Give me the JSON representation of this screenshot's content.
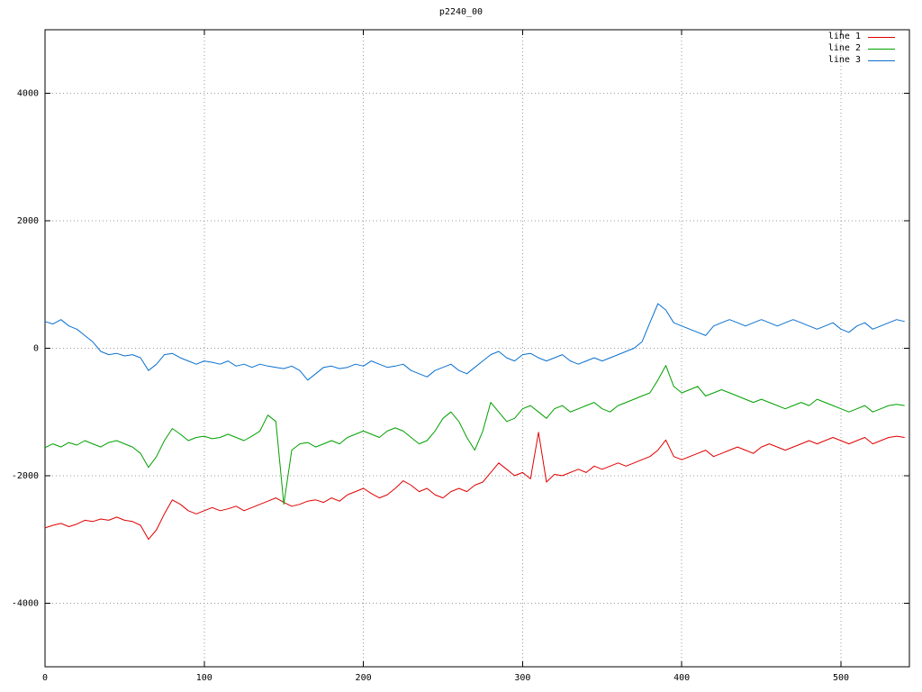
{
  "chart_data": {
    "type": "line",
    "title": "p2240_00",
    "xlabel": "",
    "ylabel": "",
    "xlim": [
      0,
      543
    ],
    "ylim": [
      -5000,
      5000
    ],
    "xticks": [
      0,
      100,
      200,
      300,
      400,
      500
    ],
    "yticks": [
      -4000,
      -2000,
      0,
      2000,
      4000
    ],
    "grid": true,
    "legend_position": "top-right",
    "x_start": 0,
    "x_step": 5,
    "series": [
      {
        "name": "line 1",
        "color": "#e00000",
        "values": [
          -2820,
          -2780,
          -2750,
          -2800,
          -2760,
          -2700,
          -2720,
          -2680,
          -2700,
          -2650,
          -2700,
          -2720,
          -2780,
          -3000,
          -2850,
          -2600,
          -2380,
          -2450,
          -2550,
          -2600,
          -2550,
          -2500,
          -2550,
          -2520,
          -2480,
          -2550,
          -2500,
          -2450,
          -2400,
          -2350,
          -2420,
          -2480,
          -2450,
          -2400,
          -2380,
          -2420,
          -2350,
          -2400,
          -2300,
          -2250,
          -2200,
          -2280,
          -2350,
          -2300,
          -2200,
          -2080,
          -2150,
          -2250,
          -2200,
          -2300,
          -2350,
          -2250,
          -2200,
          -2250,
          -2150,
          -2100,
          -1950,
          -1800,
          -1900,
          -2000,
          -1950,
          -2050,
          -1320,
          -2100,
          -1980,
          -2000,
          -1950,
          -1900,
          -1950,
          -1850,
          -1900,
          -1850,
          -1800,
          -1850,
          -1800,
          -1750,
          -1700,
          -1600,
          -1440,
          -1700,
          -1750,
          -1700,
          -1650,
          -1600,
          -1700,
          -1650,
          -1600,
          -1550,
          -1600,
          -1650,
          -1550,
          -1500,
          -1550,
          -1600,
          -1550,
          -1500,
          -1450,
          -1500,
          -1450,
          -1400,
          -1450,
          -1500,
          -1450,
          -1400,
          -1500,
          -1450,
          -1400,
          -1380,
          -1400
        ]
      },
      {
        "name": "line 2",
        "color": "#00a000",
        "values": [
          -1560,
          -1500,
          -1550,
          -1480,
          -1520,
          -1450,
          -1500,
          -1550,
          -1480,
          -1450,
          -1500,
          -1550,
          -1650,
          -1870,
          -1700,
          -1450,
          -1260,
          -1350,
          -1450,
          -1400,
          -1380,
          -1420,
          -1400,
          -1350,
          -1400,
          -1450,
          -1380,
          -1300,
          -1050,
          -1150,
          -2450,
          -1600,
          -1500,
          -1480,
          -1550,
          -1500,
          -1450,
          -1500,
          -1400,
          -1350,
          -1300,
          -1350,
          -1400,
          -1300,
          -1250,
          -1300,
          -1400,
          -1500,
          -1450,
          -1300,
          -1100,
          -1000,
          -1150,
          -1400,
          -1600,
          -1300,
          -850,
          -1000,
          -1150,
          -1100,
          -950,
          -900,
          -1000,
          -1100,
          -950,
          -900,
          -1000,
          -950,
          -900,
          -850,
          -950,
          -1000,
          -900,
          -850,
          -800,
          -750,
          -700,
          -500,
          -270,
          -600,
          -700,
          -650,
          -600,
          -750,
          -700,
          -650,
          -700,
          -750,
          -800,
          -850,
          -800,
          -850,
          -900,
          -950,
          -900,
          -850,
          -900,
          -800,
          -850,
          -900,
          -950,
          -1000,
          -950,
          -900,
          -1000,
          -950,
          -900,
          -880,
          -900
        ]
      },
      {
        "name": "line 3",
        "color": "#0a70d0",
        "values": [
          420,
          380,
          450,
          350,
          300,
          200,
          100,
          -50,
          -100,
          -80,
          -120,
          -100,
          -150,
          -350,
          -250,
          -100,
          -80,
          -150,
          -200,
          -250,
          -200,
          -220,
          -250,
          -200,
          -280,
          -250,
          -300,
          -250,
          -280,
          -300,
          -320,
          -280,
          -350,
          -500,
          -400,
          -300,
          -280,
          -320,
          -300,
          -250,
          -280,
          -200,
          -250,
          -300,
          -280,
          -250,
          -350,
          -400,
          -450,
          -350,
          -300,
          -250,
          -350,
          -400,
          -300,
          -200,
          -100,
          -50,
          -150,
          -200,
          -100,
          -80,
          -150,
          -200,
          -150,
          -100,
          -200,
          -250,
          -200,
          -150,
          -200,
          -150,
          -100,
          -50,
          0,
          100,
          400,
          700,
          600,
          400,
          350,
          300,
          250,
          200,
          350,
          400,
          450,
          400,
          350,
          400,
          450,
          400,
          350,
          400,
          450,
          400,
          350,
          300,
          350,
          400,
          300,
          250,
          350,
          400,
          300,
          350,
          400,
          450,
          420
        ]
      }
    ]
  }
}
